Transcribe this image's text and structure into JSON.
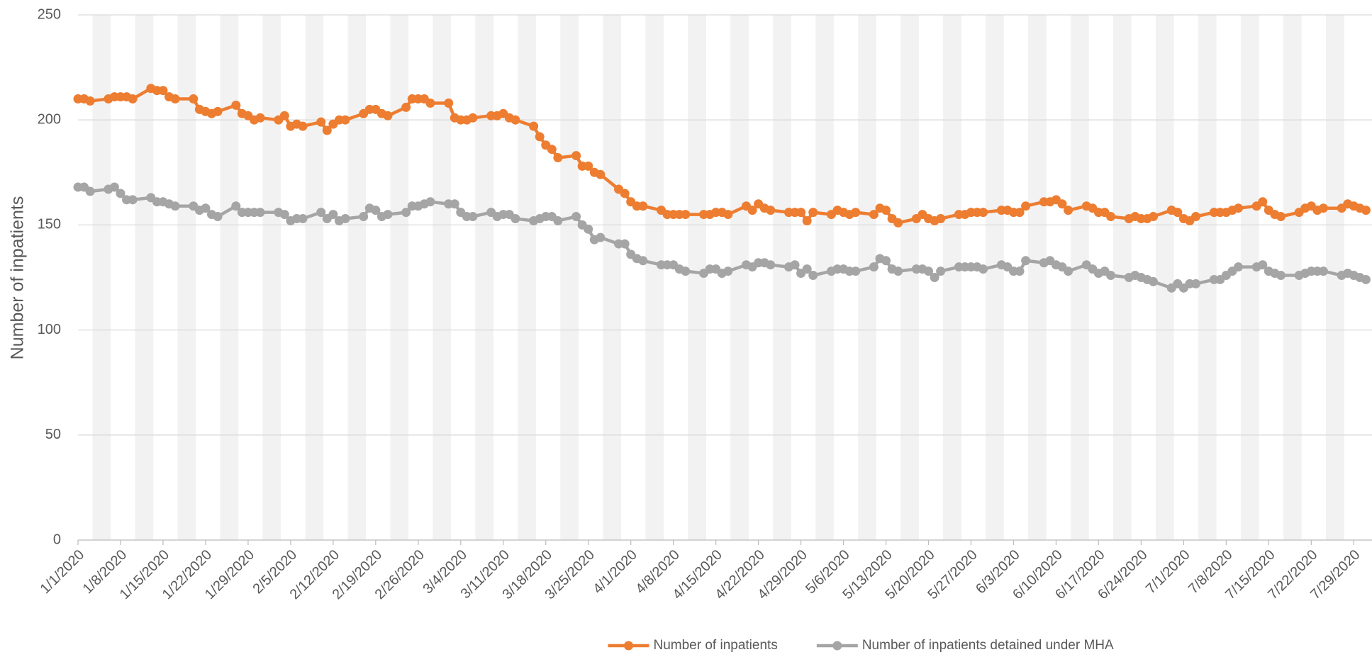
{
  "chart_data": {
    "type": "line",
    "y_label": "Number of inpatients",
    "x": [
      "1/1/2020",
      "1/2/2020",
      "1/3/2020",
      "1/6/2020",
      "1/7/2020",
      "1/8/2020",
      "1/9/2020",
      "1/10/2020",
      "1/13/2020",
      "1/14/2020",
      "1/15/2020",
      "1/16/2020",
      "1/17/2020",
      "1/20/2020",
      "1/21/2020",
      "1/22/2020",
      "1/23/2020",
      "1/24/2020",
      "1/27/2020",
      "1/28/2020",
      "1/29/2020",
      "1/30/2020",
      "1/31/2020",
      "2/3/2020",
      "2/4/2020",
      "2/5/2020",
      "2/6/2020",
      "2/7/2020",
      "2/10/2020",
      "2/11/2020",
      "2/12/2020",
      "2/13/2020",
      "2/14/2020",
      "2/17/2020",
      "2/18/2020",
      "2/19/2020",
      "2/20/2020",
      "2/21/2020",
      "2/24/2020",
      "2/25/2020",
      "2/26/2020",
      "2/27/2020",
      "2/28/2020",
      "3/2/2020",
      "3/3/2020",
      "3/4/2020",
      "3/5/2020",
      "3/6/2020",
      "3/9/2020",
      "3/10/2020",
      "3/11/2020",
      "3/12/2020",
      "3/13/2020",
      "3/16/2020",
      "3/17/2020",
      "3/18/2020",
      "3/19/2020",
      "3/20/2020",
      "3/23/2020",
      "3/24/2020",
      "3/25/2020",
      "3/26/2020",
      "3/27/2020",
      "3/30/2020",
      "3/31/2020",
      "4/1/2020",
      "4/2/2020",
      "4/3/2020",
      "4/6/2020",
      "4/7/2020",
      "4/8/2020",
      "4/9/2020",
      "4/10/2020",
      "4/13/2020",
      "4/14/2020",
      "4/15/2020",
      "4/16/2020",
      "4/17/2020",
      "4/20/2020",
      "4/21/2020",
      "4/22/2020",
      "4/23/2020",
      "4/24/2020",
      "4/27/2020",
      "4/28/2020",
      "4/29/2020",
      "4/30/2020",
      "5/1/2020",
      "5/4/2020",
      "5/5/2020",
      "5/6/2020",
      "5/7/2020",
      "5/8/2020",
      "5/11/2020",
      "5/12/2020",
      "5/13/2020",
      "5/14/2020",
      "5/15/2020",
      "5/18/2020",
      "5/19/2020",
      "5/20/2020",
      "5/21/2020",
      "5/22/2020",
      "5/25/2020",
      "5/26/2020",
      "5/27/2020",
      "5/28/2020",
      "5/29/2020",
      "6/1/2020",
      "6/2/2020",
      "6/3/2020",
      "6/4/2020",
      "6/5/2020",
      "6/8/2020",
      "6/9/2020",
      "6/10/2020",
      "6/11/2020",
      "6/12/2020",
      "6/15/2020",
      "6/16/2020",
      "6/17/2020",
      "6/18/2020",
      "6/19/2020",
      "6/22/2020",
      "6/23/2020",
      "6/24/2020",
      "6/25/2020",
      "6/26/2020",
      "6/29/2020",
      "6/30/2020",
      "7/1/2020",
      "7/2/2020",
      "7/3/2020",
      "7/6/2020",
      "7/7/2020",
      "7/8/2020",
      "7/9/2020",
      "7/10/2020",
      "7/13/2020",
      "7/14/2020",
      "7/15/2020",
      "7/16/2020",
      "7/17/2020",
      "7/20/2020",
      "7/21/2020",
      "7/22/2020",
      "7/23/2020",
      "7/24/2020",
      "7/27/2020",
      "7/28/2020",
      "7/29/2020",
      "7/30/2020",
      "7/31/2020"
    ],
    "series": [
      {
        "name": "Number of inpatients",
        "color": "#ED7D31",
        "values": [
          210,
          210,
          209,
          210,
          211,
          211,
          211,
          210,
          215,
          214,
          214,
          211,
          210,
          210,
          205,
          204,
          203,
          204,
          207,
          203,
          202,
          200,
          201,
          200,
          202,
          197,
          198,
          197,
          199,
          195,
          198,
          200,
          200,
          203,
          205,
          205,
          203,
          202,
          206,
          210,
          210,
          210,
          208,
          208,
          201,
          200,
          200,
          201,
          202,
          202,
          203,
          201,
          200,
          197,
          192,
          188,
          186,
          182,
          183,
          178,
          178,
          175,
          174,
          167,
          165,
          161,
          159,
          159,
          157,
          155,
          155,
          155,
          155,
          155,
          155,
          156,
          156,
          155,
          159,
          157,
          160,
          158,
          157,
          156,
          156,
          156,
          152,
          156,
          155,
          157,
          156,
          155,
          156,
          155,
          158,
          157,
          153,
          151,
          153,
          155,
          153,
          152,
          153,
          155,
          155,
          156,
          156,
          156,
          157,
          157,
          156,
          156,
          159,
          161,
          161,
          162,
          160,
          157,
          159,
          158,
          156,
          156,
          154,
          153,
          154,
          153,
          153,
          154,
          157,
          156,
          153,
          152,
          154,
          156,
          156,
          156,
          157,
          158,
          159,
          161,
          157,
          155,
          154,
          156,
          158,
          159,
          157,
          158,
          158,
          160,
          159,
          158,
          157
        ]
      },
      {
        "name": "Number of inpatients detained under MHA",
        "color": "#A5A5A5",
        "values": [
          168,
          168,
          166,
          167,
          168,
          165,
          162,
          162,
          163,
          161,
          161,
          160,
          159,
          159,
          157,
          158,
          155,
          154,
          159,
          156,
          156,
          156,
          156,
          156,
          155,
          152,
          153,
          153,
          156,
          153,
          155,
          152,
          153,
          154,
          158,
          157,
          154,
          155,
          156,
          159,
          159,
          160,
          161,
          160,
          160,
          156,
          154,
          154,
          156,
          154,
          155,
          155,
          153,
          152,
          153,
          154,
          154,
          152,
          154,
          150,
          148,
          143,
          144,
          141,
          141,
          136,
          134,
          133,
          131,
          131,
          131,
          129,
          128,
          127,
          129,
          129,
          127,
          128,
          131,
          130,
          132,
          132,
          131,
          130,
          131,
          127,
          129,
          126,
          128,
          129,
          129,
          128,
          128,
          130,
          134,
          133,
          129,
          128,
          129,
          129,
          128,
          125,
          128,
          130,
          130,
          130,
          130,
          129,
          131,
          130,
          128,
          128,
          133,
          132,
          133,
          131,
          130,
          128,
          131,
          129,
          127,
          128,
          126,
          125,
          126,
          125,
          124,
          123,
          120,
          122,
          120,
          122,
          122,
          124,
          124,
          126,
          128,
          130,
          130,
          131,
          128,
          127,
          126,
          126,
          127,
          128,
          128,
          128,
          126,
          127,
          126,
          125,
          124
        ]
      }
    ],
    "xlim": [
      "1/1/2020",
      "8/1/2020"
    ],
    "xticks": [
      "1/1/2020",
      "1/8/2020",
      "1/15/2020",
      "1/22/2020",
      "1/29/2020",
      "2/5/2020",
      "2/12/2020",
      "2/19/2020",
      "2/26/2020",
      "3/4/2020",
      "3/11/2020",
      "3/18/2020",
      "3/25/2020",
      "4/1/2020",
      "4/8/2020",
      "4/15/2020",
      "4/22/2020",
      "4/29/2020",
      "5/6/2020",
      "5/13/2020",
      "5/20/2020",
      "5/27/2020",
      "6/3/2020",
      "6/10/2020",
      "6/17/2020",
      "6/24/2020",
      "7/1/2020",
      "7/8/2020",
      "7/15/2020",
      "7/22/2020",
      "7/29/2020"
    ],
    "ylim": [
      0,
      250
    ],
    "yticks": [
      0,
      50,
      100,
      150,
      200,
      250
    ],
    "grid": true,
    "weekend_shading": true,
    "legend": "bottom"
  }
}
